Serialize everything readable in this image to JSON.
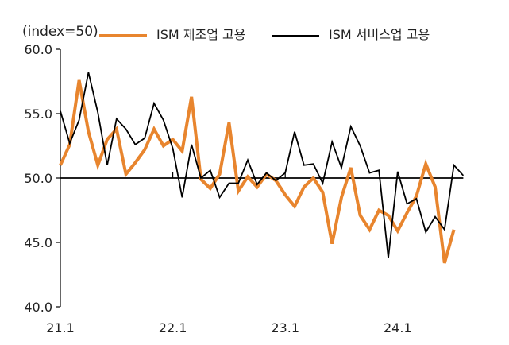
{
  "chart_data": {
    "type": "line",
    "unit_label": "(index=50)",
    "ylim": [
      40,
      60
    ],
    "yticks": [
      "40.0",
      "45.0",
      "50.0",
      "55.0",
      "60.0"
    ],
    "reference_line": 50,
    "x_tick_labels": [
      {
        "label": "21.1",
        "index": 0
      },
      {
        "label": "22.1",
        "index": 12
      },
      {
        "label": "23.1",
        "index": 24
      },
      {
        "label": "24.1",
        "index": 36
      }
    ],
    "series": [
      {
        "name": "ISM 제조업 고용",
        "color": "#E8852E",
        "values": [
          51.0,
          52.6,
          57.6,
          53.6,
          51.0,
          53.0,
          53.8,
          50.3,
          51.2,
          52.2,
          53.8,
          52.5,
          53.0,
          52.1,
          56.3,
          49.9,
          49.2,
          50.3,
          54.3,
          49.0,
          50.1,
          49.3,
          50.3,
          49.8,
          48.7,
          47.8,
          49.3,
          50.0,
          48.9,
          44.9,
          48.5,
          50.8,
          47.1,
          46.0,
          47.5,
          47.1,
          45.9,
          47.3,
          48.6,
          51.1,
          49.3,
          43.4,
          46.0
        ]
      },
      {
        "name": "ISM 서비스업 고용",
        "color": "#000000",
        "values": [
          55.2,
          52.7,
          54.5,
          58.2,
          55.1,
          51.0,
          54.6,
          53.8,
          52.6,
          53.1,
          55.8,
          54.5,
          52.3,
          48.5,
          52.6,
          50.0,
          50.6,
          48.5,
          49.6,
          49.6,
          51.4,
          49.5,
          50.4,
          49.8,
          50.4,
          53.6,
          51.0,
          51.1,
          49.6,
          52.8,
          50.8,
          54.0,
          52.5,
          50.4,
          50.6,
          43.8,
          50.5,
          48.0,
          48.4,
          45.8,
          47.0,
          46.0,
          51.0,
          50.2
        ]
      }
    ]
  }
}
